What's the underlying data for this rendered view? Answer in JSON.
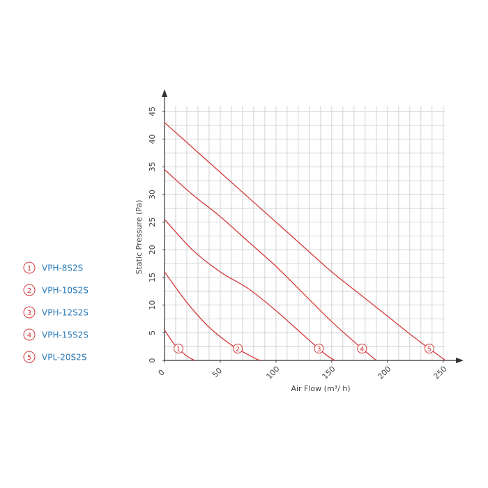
{
  "chart_data": {
    "type": "line",
    "x_label": "Air Flow (m³/ h)",
    "y_label": "Static Pressure (Pa)",
    "xlim": [
      0,
      252
    ],
    "ylim": [
      0,
      46
    ],
    "xticks": [
      0,
      50,
      100,
      150,
      200,
      250
    ],
    "yticks": [
      0,
      5,
      10,
      15,
      20,
      25,
      30,
      35,
      40,
      45
    ],
    "xgrid": [
      0,
      10,
      20,
      30,
      40,
      50,
      60,
      70,
      80,
      90,
      100,
      110,
      120,
      130,
      140,
      150,
      160,
      170,
      180,
      190,
      200,
      210,
      220,
      230,
      240,
      250
    ],
    "ygrid": [
      0,
      2.5,
      5,
      7.5,
      10,
      12.5,
      15,
      17.5,
      20,
      22.5,
      25,
      27.5,
      30,
      32.5,
      35,
      37.5,
      40,
      42.5,
      45
    ],
    "grid": true,
    "legend": "left",
    "color": "#d33a3c",
    "series": [
      {
        "name": "VPH-8S2S",
        "label": "1",
        "x": [
          0,
          10,
          20,
          27
        ],
        "values": [
          5.5,
          2.6,
          0.8,
          0
        ]
      },
      {
        "name": "VPH-10S2S",
        "label": "2",
        "x": [
          0,
          20,
          40,
          60,
          80,
          86
        ],
        "values": [
          16,
          10.5,
          6,
          2.8,
          0.5,
          0
        ]
      },
      {
        "name": "VPH-12S2S",
        "label": "3",
        "x": [
          0,
          25,
          50,
          75,
          100,
          125,
          145,
          153
        ],
        "values": [
          25.5,
          20,
          16,
          13,
          9,
          4.5,
          1,
          0
        ]
      },
      {
        "name": "VPH-15S2S",
        "label": "4",
        "x": [
          0,
          25,
          50,
          75,
          100,
          125,
          150,
          175,
          190
        ],
        "values": [
          34.5,
          30,
          26,
          21.5,
          17,
          12,
          7,
          2.5,
          0
        ]
      },
      {
        "name": "VPL-20S2S",
        "label": "5",
        "x": [
          0,
          25,
          50,
          75,
          100,
          125,
          150,
          175,
          200,
          225,
          252
        ],
        "values": [
          43,
          38.5,
          34,
          29.5,
          25,
          20.5,
          16,
          12,
          8,
          4,
          0
        ]
      }
    ]
  }
}
